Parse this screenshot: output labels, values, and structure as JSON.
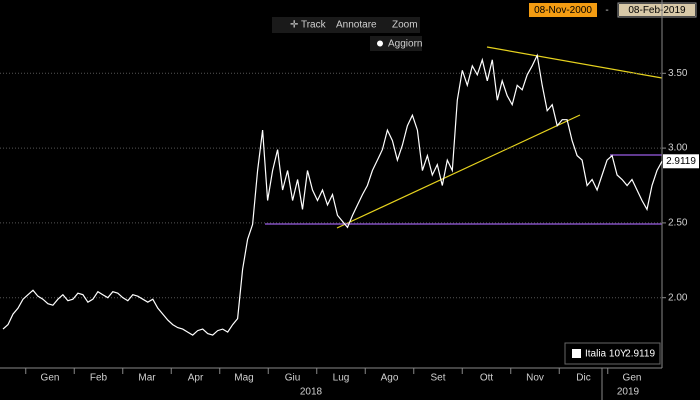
{
  "toolbar": {
    "track": "Track",
    "annotate": "Annotare",
    "zoom": "Zoom",
    "refresh": "Aggiorn"
  },
  "date_range": {
    "start": "08-Nov-2000",
    "end": "08-Feb-2019"
  },
  "chart_data": {
    "type": "line",
    "series": [
      {
        "name": "Italia 10Y",
        "color": "#ffffff",
        "values": [
          1.79,
          1.82,
          1.89,
          1.93,
          1.99,
          2.02,
          2.05,
          2.01,
          1.99,
          1.96,
          1.95,
          1.99,
          2.02,
          1.98,
          1.99,
          2.03,
          2.02,
          1.97,
          1.99,
          2.04,
          2.02,
          2.0,
          2.04,
          2.03,
          2.0,
          1.98,
          2.02,
          2.01,
          1.99,
          1.97,
          1.99,
          1.93,
          1.89,
          1.85,
          1.82,
          1.8,
          1.79,
          1.77,
          1.75,
          1.78,
          1.79,
          1.76,
          1.75,
          1.78,
          1.79,
          1.77,
          1.82,
          1.86,
          2.19,
          2.39,
          2.49,
          2.85,
          3.12,
          2.65,
          2.85,
          2.99,
          2.72,
          2.85,
          2.65,
          2.79,
          2.59,
          2.85,
          2.72,
          2.65,
          2.72,
          2.62,
          2.69,
          2.55,
          2.51,
          2.47,
          2.55,
          2.62,
          2.69,
          2.75,
          2.85,
          2.92,
          2.99,
          3.12,
          3.05,
          2.92,
          3.02,
          3.15,
          3.22,
          3.12,
          2.85,
          2.95,
          2.82,
          2.89,
          2.75,
          2.92,
          2.85,
          3.32,
          3.52,
          3.42,
          3.55,
          3.49,
          3.59,
          3.45,
          3.59,
          3.32,
          3.45,
          3.35,
          3.29,
          3.42,
          3.39,
          3.49,
          3.55,
          3.62,
          3.42,
          3.25,
          3.29,
          3.15,
          3.19,
          3.19,
          3.05,
          2.95,
          2.92,
          2.75,
          2.79,
          2.72,
          2.82,
          2.92,
          2.95,
          2.82,
          2.79,
          2.75,
          2.79,
          2.72,
          2.65,
          2.59,
          2.75,
          2.85,
          2.9119
        ]
      }
    ],
    "last_value": 2.9119,
    "month_labels": [
      "Gen",
      "Feb",
      "Mar",
      "Apr",
      "Mag",
      "Giu",
      "Lug",
      "Ago",
      "Set",
      "Ott",
      "Nov",
      "Dic",
      "Gen"
    ],
    "year_labels": [
      "2018",
      "2019"
    ],
    "ylim": [
      1.53,
      3.99
    ],
    "yticks": [
      {
        "value": 2,
        "label": "2.00"
      },
      {
        "value": 2.5,
        "label": "2.50"
      },
      {
        "value": 3,
        "label": "3.00"
      },
      {
        "value": 3.5,
        "label": "3.50"
      }
    ],
    "grid": true
  }
}
